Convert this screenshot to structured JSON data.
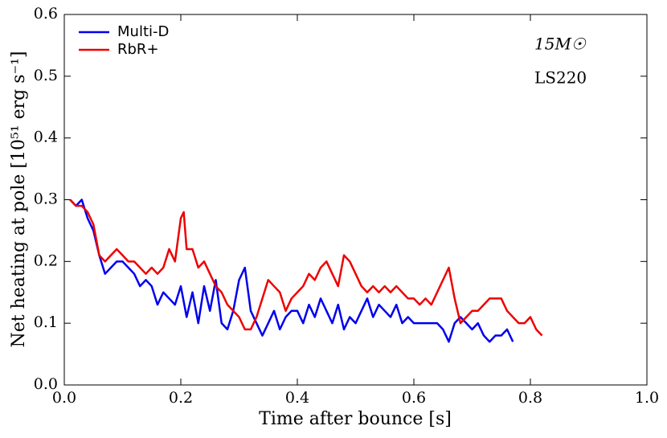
{
  "chart_data": {
    "type": "line",
    "xlabel": "Time after bounce [s]",
    "ylabel": "Net heating at pole [10⁵¹ erg s⁻¹]",
    "annotations": [
      "15M☉",
      "LS220"
    ],
    "legend": "upper left",
    "xlim": [
      0,
      1.0
    ],
    "ylim": [
      0,
      0.6
    ],
    "xticks": [
      {
        "value": 0,
        "label": "0.0"
      },
      0.2,
      0.4,
      0.6,
      0.8,
      {
        "value": 1.0,
        "label": "1.0"
      }
    ],
    "yticks": [
      {
        "value": 0,
        "label": "0.0"
      },
      0.1,
      0.2,
      0.3,
      0.4,
      0.5,
      0.6
    ],
    "series": [
      {
        "name": "Multi-D",
        "color": "#0000ee",
        "x": [
          0.01,
          0.02,
          0.03,
          0.04,
          0.05,
          0.06,
          0.07,
          0.08,
          0.09,
          0.1,
          0.11,
          0.12,
          0.13,
          0.14,
          0.15,
          0.16,
          0.17,
          0.18,
          0.19,
          0.2,
          0.21,
          0.22,
          0.23,
          0.24,
          0.25,
          0.26,
          0.27,
          0.28,
          0.29,
          0.3,
          0.31,
          0.32,
          0.33,
          0.34,
          0.35,
          0.36,
          0.37,
          0.38,
          0.39,
          0.4,
          0.41,
          0.42,
          0.43,
          0.44,
          0.45,
          0.46,
          0.47,
          0.48,
          0.49,
          0.5,
          0.51,
          0.52,
          0.53,
          0.54,
          0.55,
          0.56,
          0.57,
          0.58,
          0.59,
          0.6,
          0.62,
          0.64,
          0.65,
          0.66,
          0.67,
          0.68,
          0.69,
          0.7,
          0.71,
          0.72,
          0.73,
          0.74,
          0.75,
          0.76,
          0.77
        ],
        "values": [
          0.3,
          0.29,
          0.3,
          0.27,
          0.25,
          0.21,
          0.18,
          0.19,
          0.2,
          0.2,
          0.19,
          0.18,
          0.16,
          0.17,
          0.16,
          0.13,
          0.15,
          0.14,
          0.13,
          0.16,
          0.11,
          0.15,
          0.1,
          0.16,
          0.12,
          0.17,
          0.1,
          0.09,
          0.12,
          0.17,
          0.19,
          0.12,
          0.1,
          0.08,
          0.1,
          0.12,
          0.09,
          0.11,
          0.12,
          0.12,
          0.1,
          0.13,
          0.11,
          0.14,
          0.12,
          0.1,
          0.13,
          0.09,
          0.11,
          0.1,
          0.12,
          0.14,
          0.11,
          0.13,
          0.12,
          0.11,
          0.13,
          0.1,
          0.11,
          0.1,
          0.1,
          0.1,
          0.09,
          0.07,
          0.1,
          0.11,
          0.1,
          0.09,
          0.1,
          0.08,
          0.07,
          0.08,
          0.08,
          0.09,
          0.07
        ]
      },
      {
        "name": "RbR+",
        "color": "#ee0000",
        "x": [
          0.01,
          0.02,
          0.03,
          0.04,
          0.05,
          0.06,
          0.07,
          0.08,
          0.09,
          0.1,
          0.11,
          0.12,
          0.13,
          0.14,
          0.15,
          0.16,
          0.17,
          0.18,
          0.19,
          0.2,
          0.205,
          0.21,
          0.22,
          0.23,
          0.24,
          0.25,
          0.26,
          0.27,
          0.28,
          0.29,
          0.3,
          0.31,
          0.32,
          0.33,
          0.34,
          0.35,
          0.36,
          0.37,
          0.38,
          0.39,
          0.4,
          0.41,
          0.42,
          0.43,
          0.44,
          0.45,
          0.46,
          0.47,
          0.48,
          0.49,
          0.5,
          0.51,
          0.52,
          0.53,
          0.54,
          0.55,
          0.56,
          0.57,
          0.58,
          0.59,
          0.6,
          0.61,
          0.62,
          0.63,
          0.64,
          0.65,
          0.66,
          0.67,
          0.68,
          0.69,
          0.7,
          0.71,
          0.72,
          0.73,
          0.74,
          0.75,
          0.76,
          0.77,
          0.78,
          0.79,
          0.8,
          0.81,
          0.82
        ],
        "values": [
          0.3,
          0.29,
          0.29,
          0.28,
          0.26,
          0.21,
          0.2,
          0.21,
          0.22,
          0.21,
          0.2,
          0.2,
          0.19,
          0.18,
          0.19,
          0.18,
          0.19,
          0.22,
          0.2,
          0.27,
          0.28,
          0.22,
          0.22,
          0.19,
          0.2,
          0.18,
          0.16,
          0.15,
          0.13,
          0.12,
          0.11,
          0.09,
          0.09,
          0.11,
          0.14,
          0.17,
          0.16,
          0.15,
          0.12,
          0.14,
          0.15,
          0.16,
          0.18,
          0.17,
          0.19,
          0.2,
          0.18,
          0.16,
          0.21,
          0.2,
          0.18,
          0.16,
          0.15,
          0.16,
          0.15,
          0.16,
          0.15,
          0.16,
          0.15,
          0.14,
          0.14,
          0.13,
          0.14,
          0.13,
          0.15,
          0.17,
          0.19,
          0.14,
          0.1,
          0.11,
          0.12,
          0.12,
          0.13,
          0.14,
          0.14,
          0.14,
          0.12,
          0.11,
          0.1,
          0.1,
          0.11,
          0.09,
          0.08
        ]
      }
    ]
  }
}
